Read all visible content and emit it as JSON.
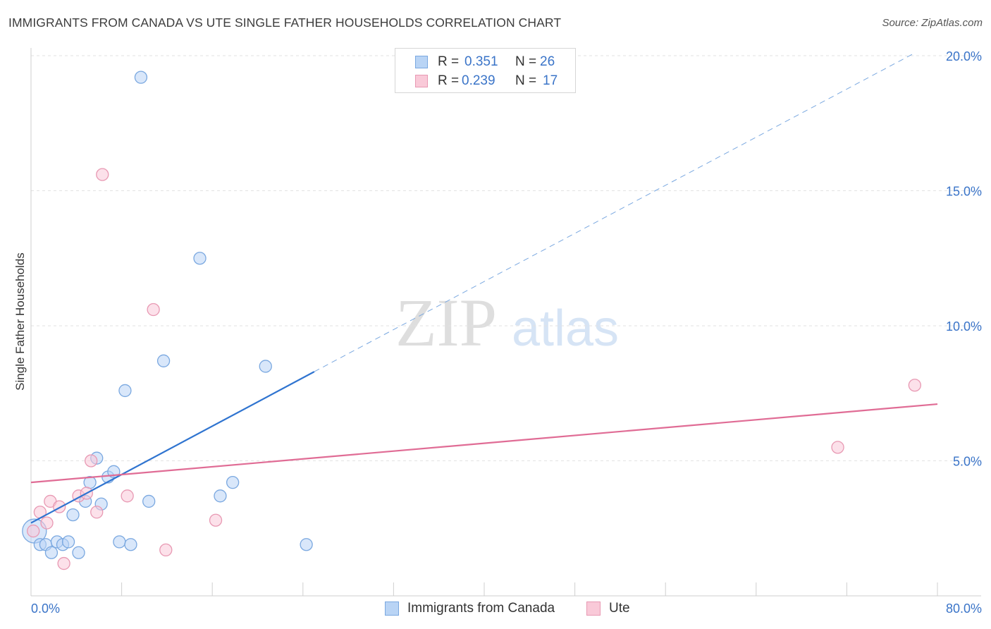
{
  "header": {
    "title": "IMMIGRANTS FROM CANADA VS UTE SINGLE FATHER HOUSEHOLDS CORRELATION CHART",
    "source": "Source: ZipAtlas.com"
  },
  "watermark": {
    "zip": "ZIP",
    "atlas": "atlas"
  },
  "legend": {
    "r_key": "R =",
    "n_key": "N =",
    "series": [
      {
        "name": "Immigrants from Canada",
        "r": "0.351",
        "n": "26",
        "fill": "#b9d4f5",
        "stroke": "#7aa8e0"
      },
      {
        "name": "Ute",
        "r": "0.239",
        "n": "17",
        "fill": "#f9c9d8",
        "stroke": "#e899b3"
      }
    ]
  },
  "chart_data": {
    "type": "scatter",
    "title": "IMMIGRANTS FROM CANADA VS UTE SINGLE FATHER HOUSEHOLDS CORRELATION CHART",
    "xlabel": "",
    "ylabel": "Single Father Households",
    "xlim": [
      0,
      80
    ],
    "ylim": [
      0,
      20
    ],
    "x_tick_labels": [
      "0.0%",
      "80.0%"
    ],
    "y_ticks": [
      5,
      10,
      15,
      20
    ],
    "y_tick_labels": [
      "5.0%",
      "10.0%",
      "15.0%",
      "20.0%"
    ],
    "grid": "horizontal dashed",
    "legend_position": "top-center",
    "series": [
      {
        "name": "Immigrants from Canada",
        "color": "#7aa8e0",
        "fill": "#b9d4f5",
        "trend_color": "#2f74d0",
        "trend": {
          "x0": 0,
          "y0": 2.7,
          "x1_solid": 25,
          "y1_solid": 8.3,
          "x1_dashed": 78,
          "y1_dashed": 20.1
        },
        "points": [
          {
            "x": 0.3,
            "y": 2.4,
            "big": true
          },
          {
            "x": 0.8,
            "y": 1.9
          },
          {
            "x": 1.3,
            "y": 1.9
          },
          {
            "x": 1.8,
            "y": 1.6
          },
          {
            "x": 2.3,
            "y": 2.0
          },
          {
            "x": 2.8,
            "y": 1.9
          },
          {
            "x": 3.3,
            "y": 2.0
          },
          {
            "x": 4.2,
            "y": 1.6
          },
          {
            "x": 3.7,
            "y": 3.0
          },
          {
            "x": 4.8,
            "y": 3.5
          },
          {
            "x": 5.2,
            "y": 4.2
          },
          {
            "x": 5.8,
            "y": 5.1
          },
          {
            "x": 6.2,
            "y": 3.4
          },
          {
            "x": 6.8,
            "y": 4.4
          },
          {
            "x": 7.3,
            "y": 4.6
          },
          {
            "x": 7.8,
            "y": 2.0
          },
          {
            "x": 8.3,
            "y": 7.6
          },
          {
            "x": 8.8,
            "y": 1.9
          },
          {
            "x": 9.7,
            "y": 19.2
          },
          {
            "x": 10.4,
            "y": 3.5
          },
          {
            "x": 11.7,
            "y": 8.7
          },
          {
            "x": 14.9,
            "y": 12.5
          },
          {
            "x": 16.7,
            "y": 3.7
          },
          {
            "x": 17.8,
            "y": 4.2
          },
          {
            "x": 20.7,
            "y": 8.5
          },
          {
            "x": 24.3,
            "y": 1.9
          }
        ]
      },
      {
        "name": "Ute",
        "color": "#e899b3",
        "fill": "#f9c9d8",
        "trend_color": "#e06c95",
        "trend": {
          "x0": 0,
          "y0": 4.2,
          "x1": 80,
          "y1": 7.1
        },
        "points": [
          {
            "x": 0.2,
            "y": 2.4
          },
          {
            "x": 0.8,
            "y": 3.1
          },
          {
            "x": 1.4,
            "y": 2.7
          },
          {
            "x": 1.7,
            "y": 3.5
          },
          {
            "x": 2.5,
            "y": 3.3
          },
          {
            "x": 2.9,
            "y": 1.2
          },
          {
            "x": 4.2,
            "y": 3.7
          },
          {
            "x": 4.9,
            "y": 3.8
          },
          {
            "x": 5.3,
            "y": 5.0
          },
          {
            "x": 5.8,
            "y": 3.1
          },
          {
            "x": 6.3,
            "y": 15.6
          },
          {
            "x": 8.5,
            "y": 3.7
          },
          {
            "x": 10.8,
            "y": 10.6
          },
          {
            "x": 11.9,
            "y": 1.7
          },
          {
            "x": 16.3,
            "y": 2.8
          },
          {
            "x": 71.2,
            "y": 5.5
          },
          {
            "x": 78.0,
            "y": 7.8
          }
        ]
      }
    ]
  }
}
